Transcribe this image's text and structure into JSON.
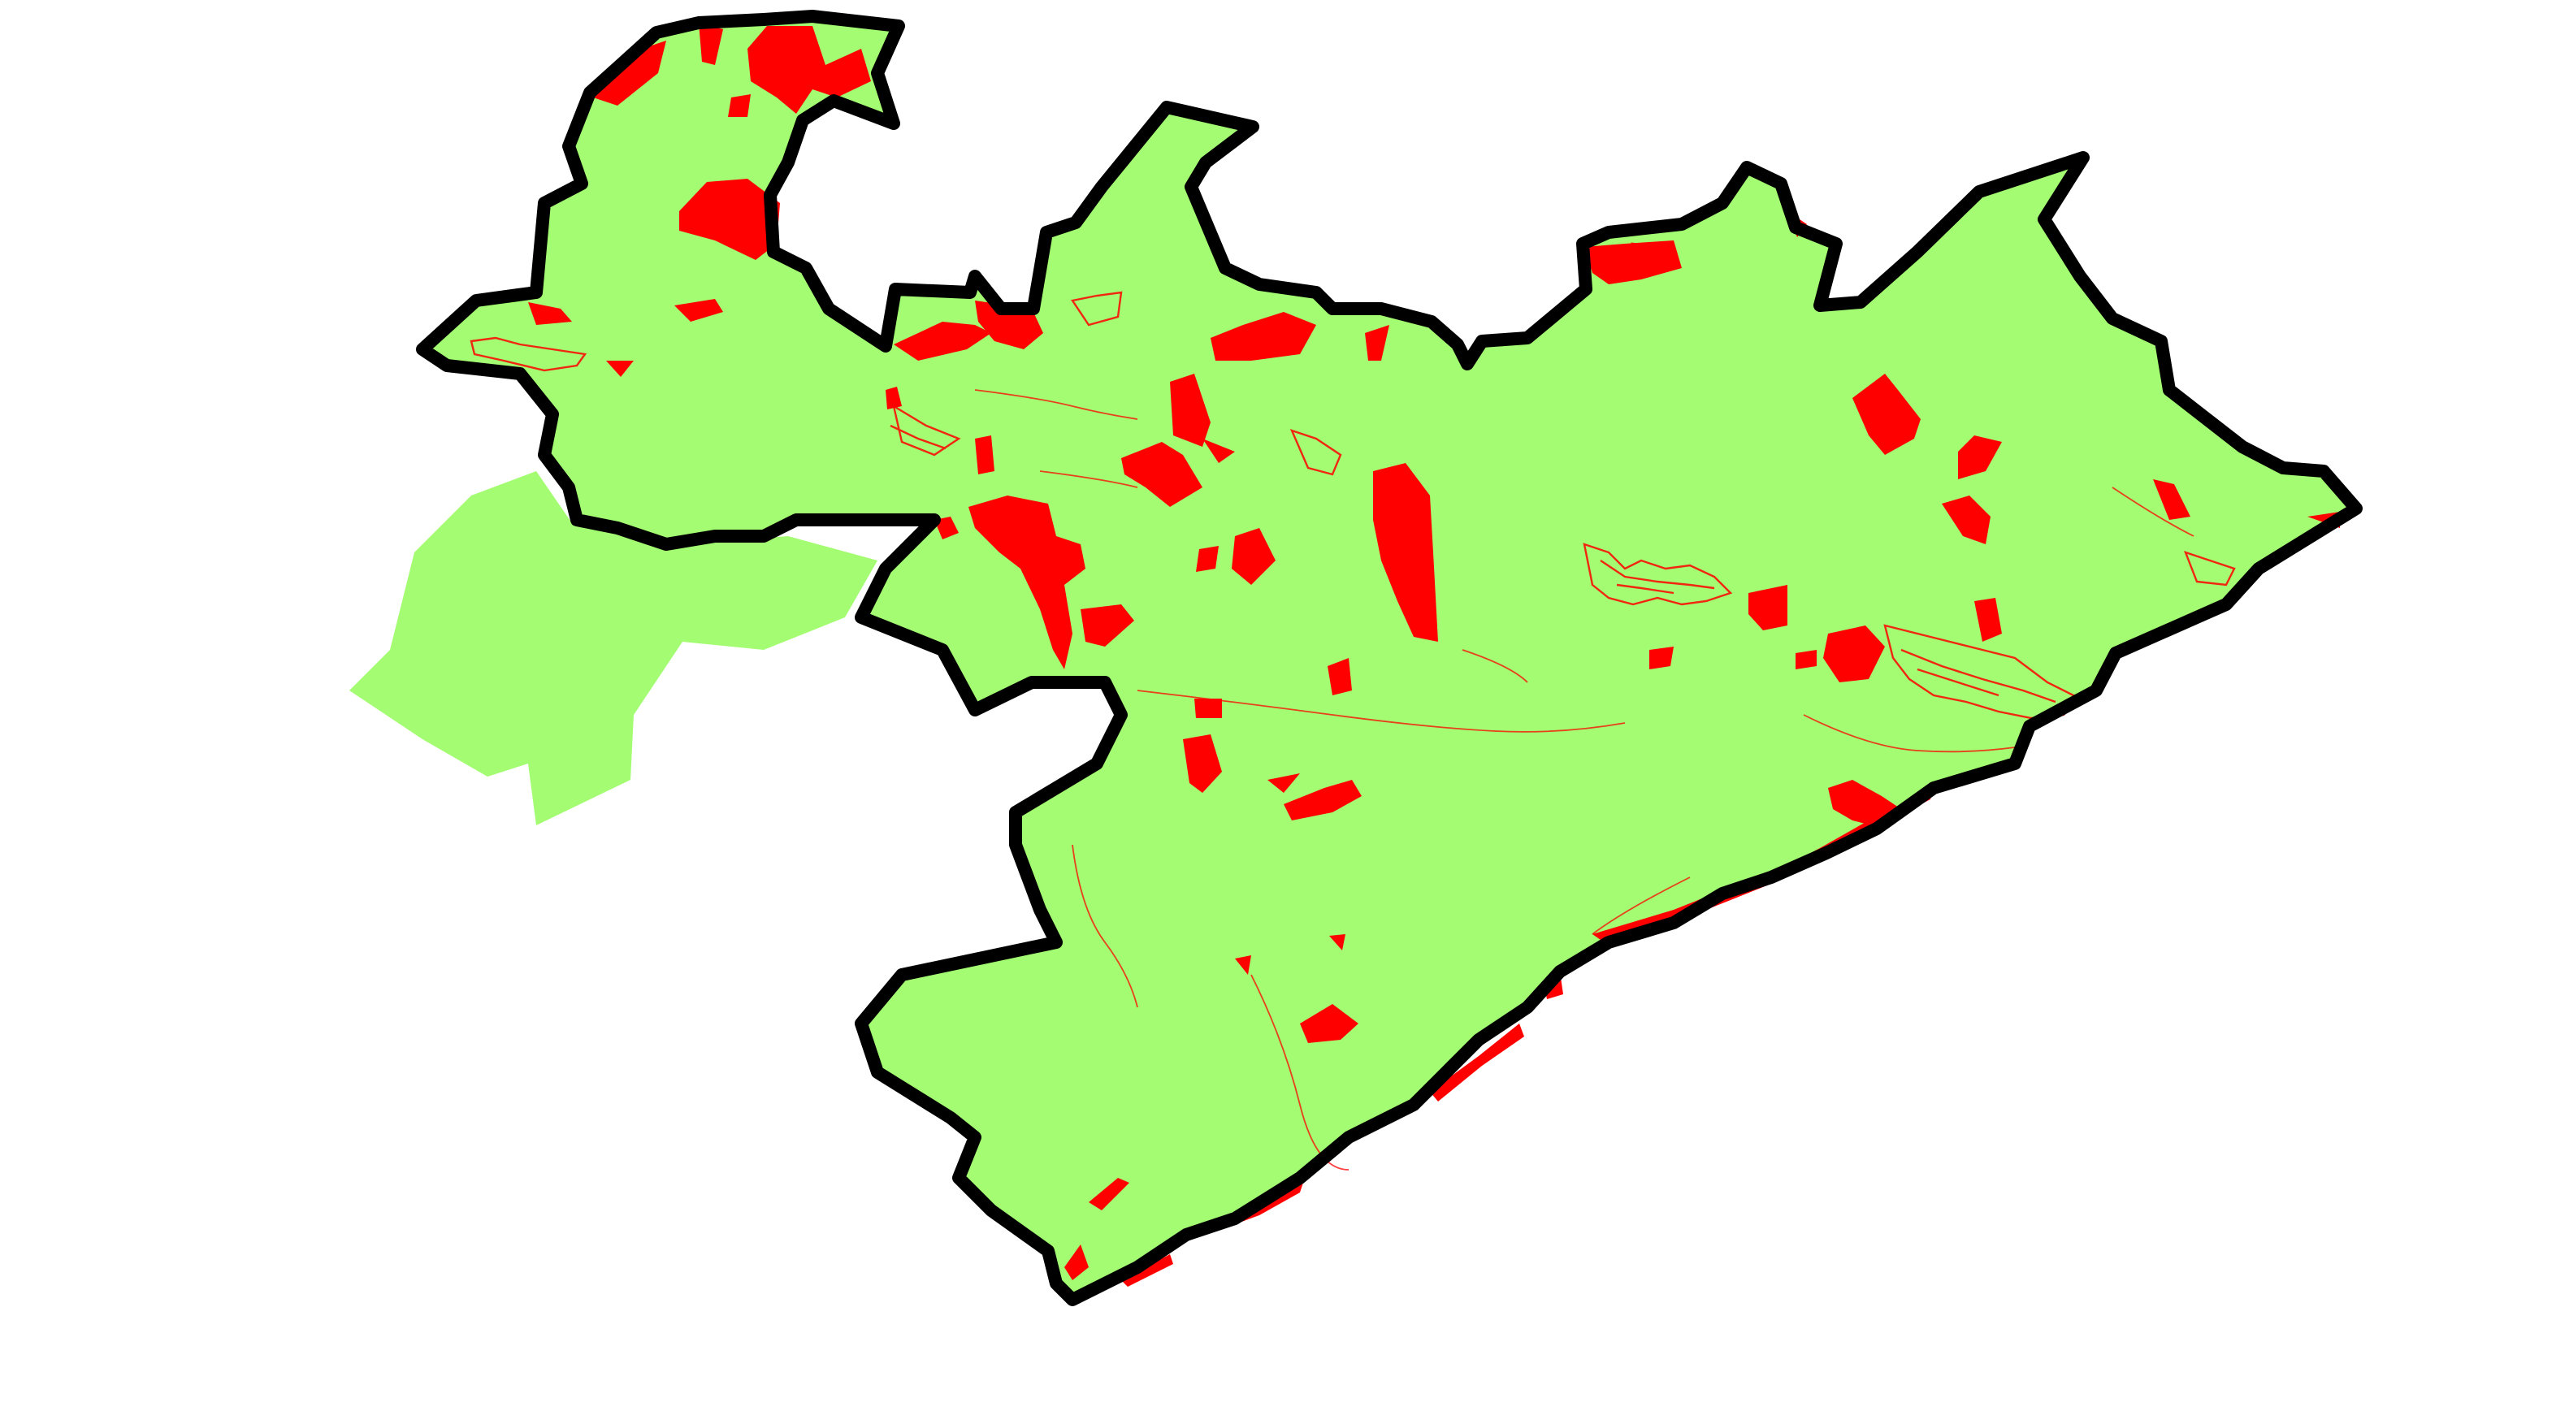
{
  "map": {
    "background_color": "#ffffff",
    "land_color": "#a3fc71",
    "patch_color": "#ff0000",
    "boundary_color": "#000000",
    "boundary_style": "thick solid outline"
  }
}
